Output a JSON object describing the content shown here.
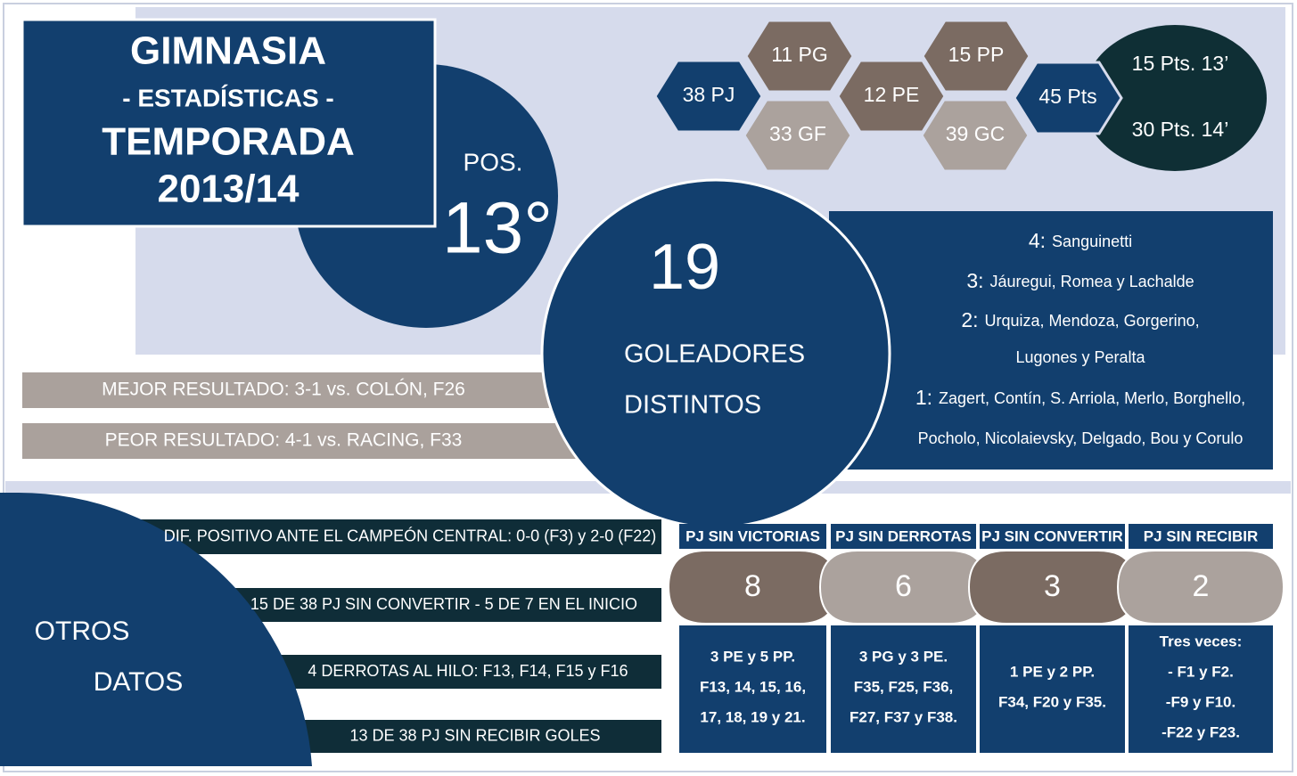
{
  "header": {
    "title": "GIMNASIA",
    "subtitle": "- ESTADÍSTICAS -",
    "season_label": "TEMPORADA",
    "season": "2013/14"
  },
  "position": {
    "label": "POS.",
    "value": "13°"
  },
  "hexes": [
    "38 PJ",
    "11 PG",
    "33 GF",
    "12 PE",
    "15 PP",
    "39 GC",
    "45 Pts"
  ],
  "comparison": [
    "15 Pts. 13’",
    "30 Pts. 14’"
  ],
  "results": [
    "MEJOR RESULTADO: 3-1 vs. COLÓN, F26",
    "PEOR RESULTADO: 4-1 vs. RACING, F33"
  ],
  "scorers": {
    "count": "19",
    "label_1": "GOLEADORES",
    "label_2": "DISTINTOS",
    "lines": [
      {
        "goals": "4:",
        "names": "Sanguinetti"
      },
      {
        "goals": "3:",
        "names": "Jáuregui, Romea y Lachalde"
      },
      {
        "goals": "2:",
        "names": "Urquiza, Mendoza, Gorgerino,"
      },
      {
        "names": "Lugones y Peralta"
      },
      {
        "goals": "1:",
        "names": "Zagert, Contín, S. Arriola, Merlo, Borghello,"
      },
      {
        "names": "Pocholo, Nicolaievsky, Delgado, Bou y Corulo"
      }
    ]
  },
  "other": {
    "title_1": "OTROS",
    "title_2": "DATOS",
    "items": [
      "DIF. POSITIVO ANTE EL CAMPEÓN CENTRAL: 0-0 (F3) y 2-0 (F22)",
      "15 DE 38 PJ SIN CONVERTIR - 5 DE 7 EN EL INICIO",
      "4 DERROTAS AL HILO: F13, F14, F15 y F16",
      "13 DE 38 PJ SIN RECIBIR GOLES"
    ]
  },
  "streaks": [
    {
      "header": "PJ SIN VICTORIAS",
      "count": "8",
      "details": [
        "3 PE y 5 PP.",
        "F13, 14, 15, 16,",
        "17, 18, 19 y 21."
      ]
    },
    {
      "header": "PJ SIN DERROTAS",
      "count": "6",
      "details": [
        "3 PG y 3 PE.",
        "F35, F25, F36,",
        "F27, F37 y F38."
      ]
    },
    {
      "header": "PJ SIN CONVERTIR",
      "count": "3",
      "details": [
        "1 PE y 2 PP.",
        "F34, F20 y F35."
      ]
    },
    {
      "header": "PJ SIN RECIBIR",
      "count": "2",
      "details": [
        "Tres veces:",
        "- F1 y F2.",
        "-F9 y F10.",
        "-F22 y F23."
      ]
    }
  ]
}
